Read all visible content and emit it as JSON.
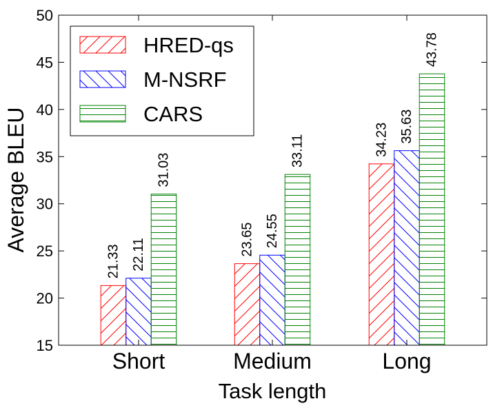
{
  "chart_data": {
    "type": "bar",
    "title": "",
    "xlabel": "Task length",
    "ylabel": "Average BLEU",
    "categories": [
      "Short",
      "Medium",
      "Long"
    ],
    "ylim": [
      15,
      50
    ],
    "yticks": [
      15,
      20,
      25,
      30,
      35,
      40,
      45,
      50
    ],
    "ytick_labels": [
      "15",
      "20",
      "25",
      "30",
      "35",
      "40",
      "45",
      "50"
    ],
    "grid": false,
    "legend_position": "top-left",
    "series": [
      {
        "name": "HRED-qs",
        "color": "#ff0000",
        "hatch": "diagonal-up",
        "values": [
          21.33,
          23.65,
          34.23
        ],
        "labels": [
          "21.33",
          "23.65",
          "34.23"
        ]
      },
      {
        "name": "M-NSRF",
        "color": "#0000ff",
        "hatch": "diagonal-down",
        "values": [
          22.11,
          24.55,
          35.63
        ],
        "labels": [
          "22.11",
          "24.55",
          "35.63"
        ]
      },
      {
        "name": "CARS",
        "color": "#008000",
        "hatch": "horizontal",
        "values": [
          31.03,
          33.11,
          43.78
        ],
        "labels": [
          "31.03",
          "33.11",
          "43.78"
        ]
      }
    ]
  }
}
